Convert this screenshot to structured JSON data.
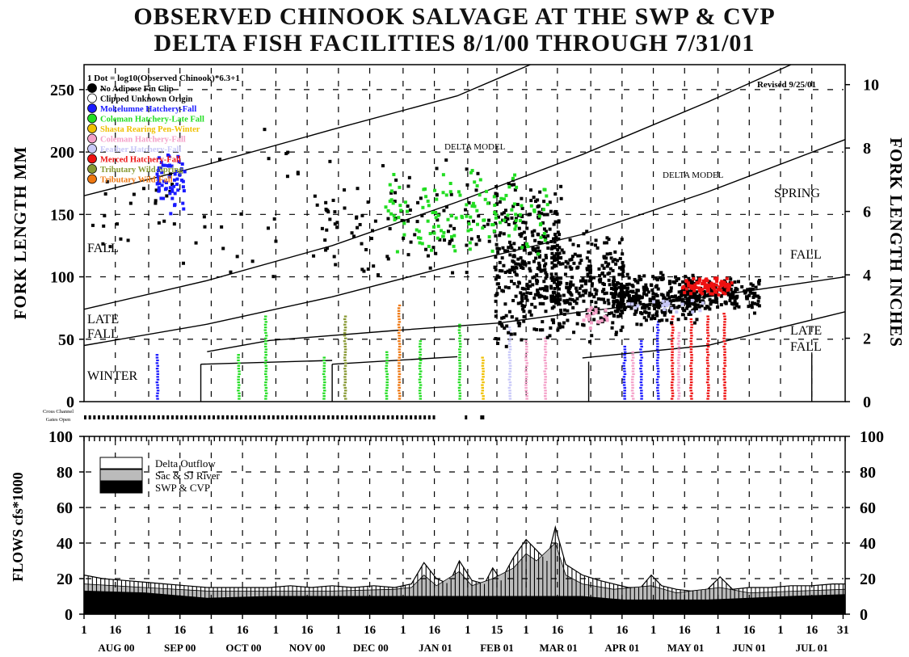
{
  "title_line1": "OBSERVED CHINOOK SALVAGE AT THE SWP & CVP",
  "title_line2": "DELTA FISH FACILITIES 8/1/00 THROUGH 7/31/01",
  "colors": {
    "axis": "#000000",
    "grid": "#000000"
  },
  "chart_data": [
    {
      "type": "scatter",
      "ylabel": "FORK LENGTH MM",
      "y2label": "FORK LENGTH INCHES",
      "ylim": [
        0,
        270
      ],
      "y2lim": [
        0,
        10.63
      ],
      "yticks": [
        0,
        50,
        100,
        150,
        200,
        250
      ],
      "y2ticks": [
        0,
        2,
        4,
        6,
        8,
        10
      ],
      "xlim": [
        1,
        366
      ],
      "grid": true,
      "legend_position": "top-left",
      "legend_header": "1 Dot = log10(Observed Chinook)*6.3+1",
      "revised": "Revised 9/25/01",
      "legend": [
        {
          "name": "No Adipose Fin Clip",
          "color": "#000000"
        },
        {
          "name": "Clipped Unknown Origin",
          "color": "#ffffff"
        },
        {
          "name": "Mokelumne Hatchery-Fall",
          "color": "#1a1aff"
        },
        {
          "name": "Coleman Hatchery-Late Fall",
          "color": "#22dd22"
        },
        {
          "name": "Shasta Rearing Pen-Winter",
          "color": "#f0c000"
        },
        {
          "name": "Coleman Hatchery-Fall",
          "color": "#f4a0c8"
        },
        {
          "name": "Feather Hatchery-Fall",
          "color": "#c8c8f8"
        },
        {
          "name": "Merced Hatchery-Fall",
          "color": "#ee1111"
        },
        {
          "name": "Tributary Wild-Spring",
          "color": "#889933"
        },
        {
          "name": "Tributary Wild-Fall",
          "color": "#ee7711"
        }
      ],
      "model_label_1": "DELTA MODEL",
      "model_label_2": "DELTA MODEL",
      "run_labels": [
        "FALL",
        "LATE",
        "FALL",
        "WINTER",
        "SPRING",
        "FALL",
        "LATE",
        "FALL"
      ],
      "cross_channel": [
        "Cross Channel",
        "Gates Open"
      ],
      "model_curves": [
        {
          "name": "spring-upper",
          "points": [
            [
              1,
              165
            ],
            [
              60,
              190
            ],
            [
              120,
              218
            ],
            [
              180,
              245
            ],
            [
              215,
              270
            ]
          ]
        },
        {
          "name": "spring-lower",
          "points": [
            [
              1,
              74
            ],
            [
              60,
              97
            ],
            [
              120,
              125
            ],
            [
              180,
              160
            ],
            [
              240,
              198
            ],
            [
              300,
              240
            ],
            [
              340,
              270
            ]
          ]
        },
        {
          "name": "fall-upper",
          "points": [
            [
              1,
              45
            ],
            [
              60,
              62
            ],
            [
              120,
              84
            ],
            [
              180,
              110
            ],
            [
              240,
              134
            ],
            [
              300,
              168
            ],
            [
              366,
              210
            ]
          ]
        },
        {
          "name": "fall-lower",
          "points": [
            [
              60,
              40
            ],
            [
              90,
              49
            ],
            [
              150,
              57
            ],
            [
              200,
              63
            ],
            [
              240,
              72
            ],
            [
              300,
              84
            ],
            [
              366,
              100
            ]
          ]
        },
        {
          "name": "late-fall-lower",
          "points": [
            [
              240,
              35
            ],
            [
              300,
              45
            ],
            [
              366,
              72
            ]
          ]
        },
        {
          "name": "winter-1",
          "points": [
            [
              57,
              30
            ],
            [
              120,
              33
            ]
          ]
        },
        {
          "name": "winter-2",
          "points": [
            [
              120,
              30
            ],
            [
              180,
              36
            ]
          ]
        }
      ],
      "clusters": [
        {
          "color": "#000000",
          "x": [
            198,
            230
          ],
          "y": [
            40,
            180
          ],
          "n": 360
        },
        {
          "color": "#000000",
          "x": [
            225,
            260
          ],
          "y": [
            45,
            140
          ],
          "n": 300
        },
        {
          "color": "#000000",
          "x": [
            255,
            295
          ],
          "y": [
            60,
            105
          ],
          "n": 320
        },
        {
          "color": "#000000",
          "x": [
            290,
            325
          ],
          "y": [
            70,
            100
          ],
          "n": 180
        },
        {
          "color": "#000000",
          "x": [
            115,
            200
          ],
          "y": [
            90,
            200
          ],
          "n": 110
        },
        {
          "color": "#000000",
          "x": [
            1,
            120
          ],
          "y": [
            80,
            230
          ],
          "n": 50
        },
        {
          "color": "#1a1aff",
          "x": [
            36,
            50
          ],
          "y": [
            150,
            200
          ],
          "n": 60
        },
        {
          "color": "#22dd22",
          "x": [
            145,
            225
          ],
          "y": [
            110,
            190
          ],
          "n": 140
        },
        {
          "color": "#ee1111",
          "x": [
            288,
            312
          ],
          "y": [
            85,
            100
          ],
          "n": 90
        },
        {
          "color": "#f4a0c8",
          "x": [
            240,
            252
          ],
          "y": [
            58,
            78
          ],
          "n": 20
        },
        {
          "color": "#c8c8f8",
          "x": [
            262,
            300
          ],
          "y": [
            70,
            85
          ],
          "n": 20
        }
      ],
      "columns": [
        {
          "color": "#1a1aff",
          "x": 36,
          "y": [
            2,
            38
          ]
        },
        {
          "color": "#22dd22",
          "x": 75,
          "y": [
            2,
            38
          ]
        },
        {
          "color": "#22dd22",
          "x": 88,
          "y": [
            2,
            70
          ]
        },
        {
          "color": "#22dd22",
          "x": 116,
          "y": [
            2,
            35
          ]
        },
        {
          "color": "#889933",
          "x": 126,
          "y": [
            2,
            70
          ]
        },
        {
          "color": "#22dd22",
          "x": 146,
          "y": [
            2,
            40
          ]
        },
        {
          "color": "#ee7711",
          "x": 152,
          "y": [
            2,
            78
          ]
        },
        {
          "color": "#22dd22",
          "x": 162,
          "y": [
            2,
            50
          ]
        },
        {
          "color": "#22dd22",
          "x": 181,
          "y": [
            2,
            62
          ]
        },
        {
          "color": "#f0c000",
          "x": 192,
          "y": [
            2,
            35
          ]
        },
        {
          "color": "#c8c8f8",
          "x": 205,
          "y": [
            2,
            60
          ]
        },
        {
          "color": "#f4a0c8",
          "x": 213,
          "y": [
            2,
            50
          ]
        },
        {
          "color": "#f4a0c8",
          "x": 222,
          "y": [
            2,
            52
          ]
        },
        {
          "color": "#1a1aff",
          "x": 260,
          "y": [
            2,
            45
          ]
        },
        {
          "color": "#1a1aff",
          "x": 268,
          "y": [
            2,
            50
          ]
        },
        {
          "color": "#1a1aff",
          "x": 276,
          "y": [
            2,
            65
          ]
        },
        {
          "color": "#ee1111",
          "x": 283,
          "y": [
            2,
            70
          ]
        },
        {
          "color": "#ee1111",
          "x": 292,
          "y": [
            2,
            68
          ]
        },
        {
          "color": "#ee1111",
          "x": 300,
          "y": [
            2,
            70
          ]
        },
        {
          "color": "#ee1111",
          "x": 308,
          "y": [
            2,
            72
          ]
        },
        {
          "color": "#f4a0c8",
          "x": 264,
          "y": [
            2,
            40
          ]
        },
        {
          "color": "#f4a0c8",
          "x": 286,
          "y": [
            2,
            55
          ]
        }
      ]
    },
    {
      "type": "area",
      "ylabel": "FLOWS cfs*1000",
      "ylim": [
        0,
        100
      ],
      "yticks": [
        0,
        20,
        40,
        60,
        80,
        100
      ],
      "grid": true,
      "legend_position": "top-left",
      "legend": [
        {
          "name": "Delta Outflow",
          "color": "#ffffff"
        },
        {
          "name": "Sac & SJ River",
          "color": "#bbbbbb"
        },
        {
          "name": "SWP & CVP",
          "color": "#000000"
        }
      ],
      "x_month_labels": [
        "AUG 00",
        "SEP 00",
        "OCT 00",
        "NOV 00",
        "DEC 00",
        "JAN 01",
        "FEB 01",
        "MAR 01",
        "APR 01",
        "MAY 01",
        "JUN 01",
        "JUL 01"
      ],
      "x_tick_labels": [
        "1",
        "16",
        "1",
        "16",
        "1",
        "16",
        "1",
        "16",
        "1",
        "16",
        "1",
        "16",
        "1",
        "15",
        "1",
        "16",
        "1",
        "16",
        "1",
        "16",
        "1",
        "16",
        "1",
        "16",
        "31"
      ],
      "x_tick_days": [
        1,
        16,
        32,
        47,
        62,
        77,
        93,
        108,
        123,
        138,
        154,
        169,
        185,
        199,
        213,
        228,
        244,
        259,
        274,
        289,
        305,
        320,
        335,
        350,
        365
      ],
      "delta_outflow": [
        [
          1,
          22
        ],
        [
          10,
          20
        ],
        [
          20,
          19
        ],
        [
          30,
          18
        ],
        [
          40,
          17
        ],
        [
          50,
          16
        ],
        [
          60,
          15
        ],
        [
          70,
          15
        ],
        [
          80,
          15
        ],
        [
          90,
          15
        ],
        [
          100,
          16
        ],
        [
          110,
          15
        ],
        [
          120,
          16
        ],
        [
          130,
          15
        ],
        [
          140,
          16
        ],
        [
          150,
          15
        ],
        [
          158,
          17
        ],
        [
          164,
          29
        ],
        [
          170,
          20
        ],
        [
          176,
          17
        ],
        [
          181,
          30
        ],
        [
          187,
          19
        ],
        [
          193,
          17
        ],
        [
          197,
          26
        ],
        [
          201,
          19
        ],
        [
          207,
          32
        ],
        [
          213,
          42
        ],
        [
          218,
          36
        ],
        [
          223,
          30
        ],
        [
          227,
          49
        ],
        [
          232,
          28
        ],
        [
          240,
          22
        ],
        [
          248,
          19
        ],
        [
          255,
          17
        ],
        [
          262,
          15
        ],
        [
          268,
          15
        ],
        [
          273,
          22
        ],
        [
          278,
          16
        ],
        [
          285,
          14
        ],
        [
          292,
          13
        ],
        [
          300,
          14
        ],
        [
          306,
          21
        ],
        [
          312,
          14
        ],
        [
          320,
          15
        ],
        [
          330,
          15
        ],
        [
          340,
          16
        ],
        [
          350,
          16
        ],
        [
          360,
          17
        ],
        [
          366,
          17
        ]
      ],
      "sac_sj": [
        [
          1,
          17
        ],
        [
          30,
          15
        ],
        [
          60,
          13
        ],
        [
          90,
          13
        ],
        [
          120,
          13
        ],
        [
          150,
          14
        ],
        [
          158,
          15
        ],
        [
          164,
          22
        ],
        [
          170,
          16
        ],
        [
          181,
          24
        ],
        [
          187,
          16
        ],
        [
          197,
          20
        ],
        [
          207,
          26
        ],
        [
          213,
          34
        ],
        [
          218,
          30
        ],
        [
          227,
          40
        ],
        [
          232,
          22
        ],
        [
          240,
          17
        ],
        [
          255,
          14
        ],
        [
          273,
          16
        ],
        [
          285,
          12
        ],
        [
          306,
          15
        ],
        [
          320,
          12
        ],
        [
          366,
          14
        ]
      ],
      "swp_cvp": [
        [
          1,
          13
        ],
        [
          30,
          12
        ],
        [
          60,
          9
        ],
        [
          90,
          10
        ],
        [
          120,
          10
        ],
        [
          150,
          10
        ],
        [
          180,
          10
        ],
        [
          213,
          10
        ],
        [
          240,
          10
        ],
        [
          260,
          8
        ],
        [
          280,
          8
        ],
        [
          300,
          8
        ],
        [
          320,
          9
        ],
        [
          340,
          10
        ],
        [
          366,
          11
        ]
      ]
    }
  ]
}
